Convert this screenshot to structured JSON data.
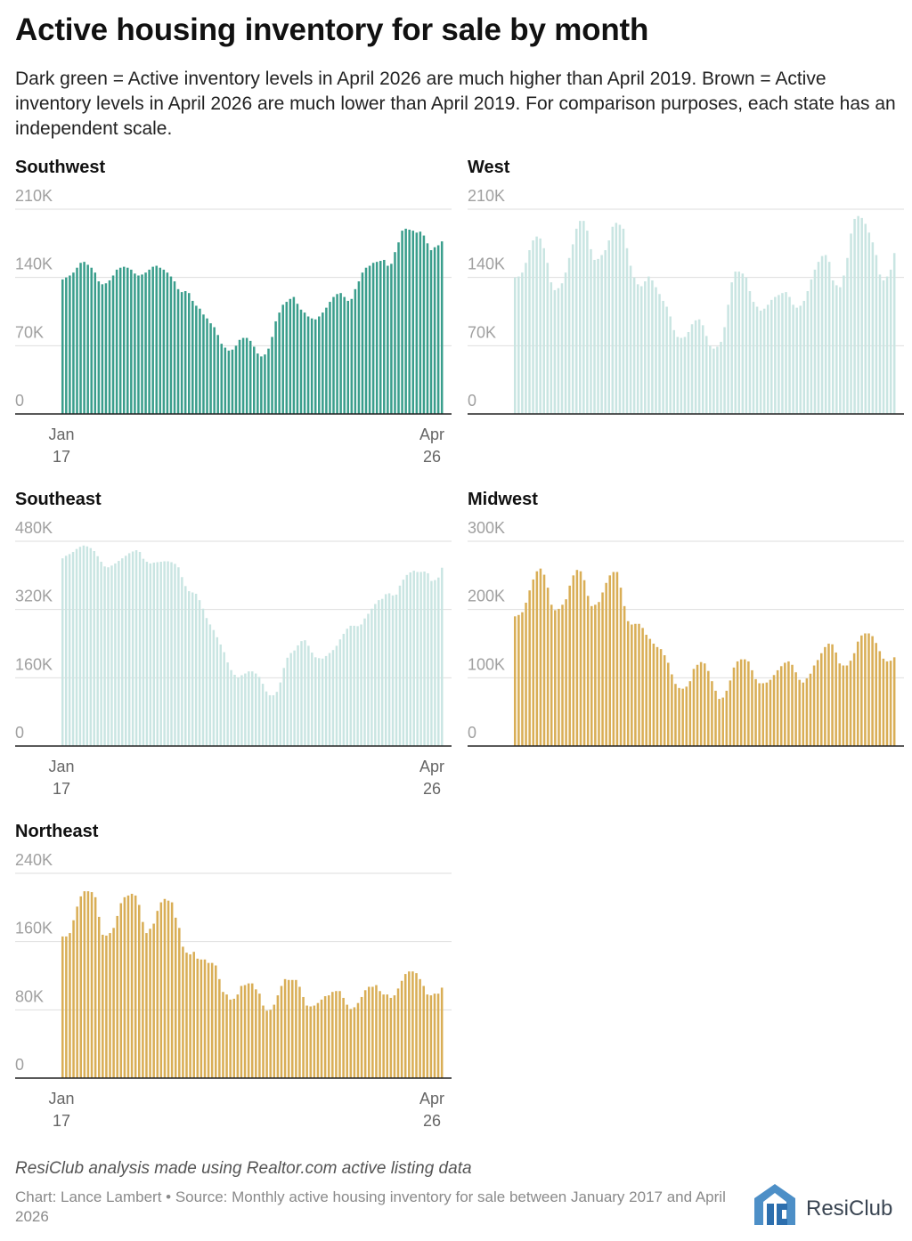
{
  "header": {
    "title": "Active housing inventory for sale by month",
    "subtitle": "Dark green = Active inventory levels in April 2026 are much higher than April 2019. Brown = Active inventory levels in April 2026 are much lower than April 2019. For comparison purposes, each state has an independent scale."
  },
  "colors": {
    "dark_green": "#3a9e8c",
    "light_teal": "#c9e5e2",
    "brown": "#d9ae56"
  },
  "chart_data": [
    {
      "type": "bar",
      "title": "Southwest",
      "color": "#3a9e8c",
      "x_first": "Jan 17",
      "x_last": "Apr 26",
      "x_labels": [
        [
          "Jan",
          "17"
        ],
        [
          "Apr",
          "26"
        ]
      ],
      "ylim": [
        0,
        210000
      ],
      "yticks": [
        0,
        70000,
        140000,
        210000
      ],
      "ytick_labels": [
        "0",
        "70K",
        "140K",
        "210K"
      ],
      "values": [
        138,
        140,
        142,
        145,
        150,
        155,
        156,
        153,
        150,
        145,
        136,
        133,
        134,
        137,
        142,
        148,
        150,
        151,
        150,
        148,
        144,
        142,
        143,
        145,
        148,
        151,
        152,
        150,
        148,
        145,
        141,
        136,
        128,
        125,
        126,
        124,
        116,
        111,
        108,
        102,
        98,
        93,
        89,
        81,
        72,
        68,
        65,
        66,
        70,
        76,
        78,
        78,
        75,
        69,
        62,
        59,
        61,
        67,
        79,
        95,
        104,
        112,
        115,
        118,
        120,
        113,
        107,
        104,
        100,
        98,
        97,
        100,
        104,
        109,
        115,
        120,
        123,
        124,
        120,
        116,
        118,
        128,
        136,
        145,
        150,
        152,
        155,
        156,
        157,
        158,
        152,
        154,
        166,
        176,
        188,
        190,
        189,
        188,
        186,
        187,
        183,
        175,
        168,
        171,
        173,
        177
      ]
    },
    {
      "type": "bar",
      "title": "West",
      "color": "#c9e5e2",
      "x_first": "Jan 17",
      "x_last": "Apr 26",
      "ylim": [
        0,
        210000
      ],
      "yticks": [
        0,
        70000,
        140000,
        210000
      ],
      "ytick_labels": [
        "0",
        "70K",
        "140K",
        "210K"
      ],
      "values": [
        140,
        141,
        145,
        155,
        168,
        178,
        182,
        180,
        170,
        155,
        135,
        127,
        129,
        134,
        145,
        160,
        174,
        190,
        198,
        198,
        188,
        169,
        158,
        159,
        163,
        168,
        178,
        192,
        196,
        194,
        190,
        170,
        152,
        140,
        133,
        131,
        136,
        141,
        137,
        130,
        123,
        116,
        110,
        100,
        86,
        79,
        78,
        79,
        84,
        92,
        96,
        97,
        91,
        80,
        70,
        67,
        69,
        74,
        89,
        112,
        135,
        146,
        146,
        144,
        140,
        126,
        115,
        110,
        106,
        108,
        112,
        117,
        120,
        122,
        124,
        125,
        120,
        112,
        109,
        111,
        116,
        126,
        138,
        148,
        156,
        162,
        163,
        156,
        137,
        132,
        130,
        142,
        160,
        185,
        200,
        203,
        201,
        195,
        186,
        176,
        163,
        143,
        137,
        141,
        148,
        165
      ]
    },
    {
      "type": "bar",
      "title": "Southeast",
      "color": "#c9e5e2",
      "x_first": "Jan 17",
      "x_last": "Apr 26",
      "x_labels": [
        [
          "Jan",
          "17"
        ],
        [
          "Apr",
          "26"
        ]
      ],
      "ylim": [
        0,
        480000
      ],
      "yticks": [
        0,
        160000,
        320000,
        480000
      ],
      "ytick_labels": [
        "0",
        "160K",
        "320K",
        "480K"
      ],
      "values": [
        440,
        446,
        450,
        455,
        462,
        467,
        470,
        468,
        464,
        457,
        445,
        432,
        421,
        419,
        423,
        428,
        434,
        440,
        446,
        452,
        456,
        459,
        455,
        439,
        432,
        428,
        430,
        431,
        432,
        433,
        433,
        431,
        427,
        419,
        396,
        375,
        363,
        360,
        357,
        342,
        322,
        300,
        285,
        272,
        255,
        238,
        220,
        196,
        178,
        167,
        161,
        166,
        170,
        175,
        175,
        170,
        162,
        146,
        128,
        119,
        119,
        127,
        149,
        183,
        207,
        218,
        224,
        236,
        246,
        248,
        235,
        219,
        208,
        206,
        205,
        211,
        218,
        225,
        235,
        250,
        263,
        275,
        282,
        282,
        281,
        285,
        299,
        310,
        322,
        333,
        342,
        345,
        356,
        358,
        353,
        355,
        376,
        390,
        401,
        407,
        411,
        408,
        408,
        409,
        405,
        387,
        389,
        395,
        418
      ]
    },
    {
      "type": "bar",
      "title": "Midwest",
      "color": "#d9ae56",
      "x_first": "Jan 17",
      "x_last": "Apr 26",
      "ylim": [
        0,
        300000
      ],
      "yticks": [
        0,
        100000,
        200000,
        300000
      ],
      "ytick_labels": [
        "0",
        "100K",
        "200K",
        "300K"
      ],
      "values": [
        190,
        192,
        196,
        210,
        228,
        244,
        256,
        260,
        251,
        232,
        207,
        199,
        201,
        207,
        215,
        235,
        250,
        258,
        256,
        243,
        220,
        205,
        207,
        211,
        225,
        239,
        250,
        255,
        255,
        232,
        205,
        183,
        178,
        179,
        179,
        173,
        163,
        157,
        150,
        145,
        142,
        133,
        122,
        105,
        91,
        85,
        84,
        87,
        95,
        113,
        119,
        123,
        121,
        110,
        95,
        81,
        69,
        71,
        81,
        96,
        115,
        124,
        127,
        127,
        124,
        111,
        98,
        92,
        92,
        93,
        97,
        104,
        111,
        117,
        122,
        124,
        119,
        108,
        97,
        93,
        99,
        106,
        118,
        126,
        136,
        145,
        150,
        149,
        137,
        121,
        118,
        118,
        125,
        136,
        153,
        162,
        165,
        165,
        161,
        151,
        139,
        128,
        124,
        125,
        130
      ]
    },
    {
      "type": "bar",
      "title": "Northeast",
      "color": "#d9ae56",
      "x_first": "Jan 17",
      "x_last": "Apr 26",
      "x_labels": [
        [
          "Jan",
          "17"
        ],
        [
          "Apr",
          "26"
        ]
      ],
      "ylim": [
        0,
        240000
      ],
      "yticks": [
        0,
        80000,
        160000,
        240000
      ],
      "ytick_labels": [
        "0",
        "80K",
        "160K",
        "240K"
      ],
      "values": [
        166,
        166,
        170,
        185,
        201,
        213,
        219,
        219,
        218,
        212,
        189,
        168,
        167,
        170,
        176,
        190,
        205,
        212,
        214,
        216,
        214,
        203,
        183,
        170,
        175,
        181,
        196,
        206,
        210,
        208,
        206,
        188,
        176,
        154,
        147,
        145,
        148,
        140,
        139,
        139,
        135,
        135,
        132,
        116,
        101,
        98,
        92,
        93,
        98,
        108,
        109,
        111,
        111,
        104,
        99,
        85,
        79,
        80,
        86,
        97,
        108,
        116,
        115,
        115,
        115,
        107,
        95,
        85,
        84,
        85,
        88,
        92,
        96,
        97,
        101,
        102,
        102,
        94,
        86,
        81,
        83,
        88,
        95,
        103,
        107,
        107,
        109,
        102,
        98,
        98,
        94,
        97,
        105,
        114,
        122,
        125,
        125,
        123,
        116,
        108,
        98,
        97,
        99,
        99,
        106
      ]
    }
  ],
  "footer": {
    "note": "ResiClub analysis made using Realtor.com active listing data",
    "credit": "Chart: Lance Lambert • Source: Monthly active housing inventory for sale between January 2017 and April 2026",
    "logo_text": "ResiClub"
  }
}
